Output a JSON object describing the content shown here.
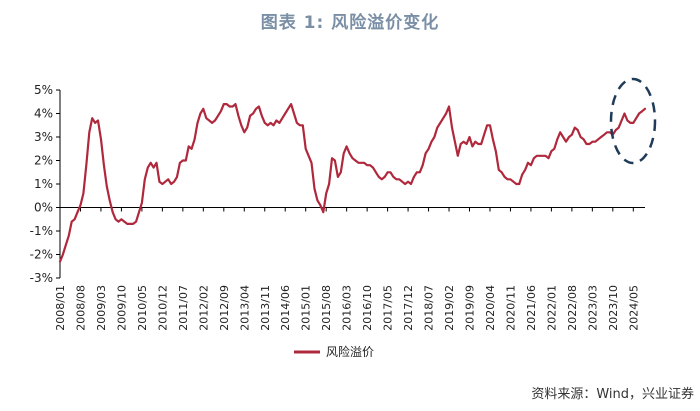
{
  "chart_data": {
    "type": "line",
    "title": "图表 1:  风险溢价变化",
    "legend": {
      "entries": [
        "风险溢价"
      ],
      "placement": "bottom-center"
    },
    "source": "资料来源：Wind，兴业证券",
    "series_color": "#b0283c",
    "highlight_color": "#1f3b57",
    "ylim": [
      -3,
      5
    ],
    "yticks": [
      {
        "value": 5,
        "label": "5%"
      },
      {
        "value": 4,
        "label": "4%"
      },
      {
        "value": 3,
        "label": "3%"
      },
      {
        "value": 2,
        "label": "2%"
      },
      {
        "value": 1,
        "label": "1%"
      },
      {
        "value": 0,
        "label": "0%"
      },
      {
        "value": -1,
        "label": "-1%"
      },
      {
        "value": -2,
        "label": "-2%"
      },
      {
        "value": -3,
        "label": "-3%"
      }
    ],
    "xticks": [
      "2008/01",
      "2008/08",
      "2009/03",
      "2009/10",
      "2010/05",
      "2010/12",
      "2011/07",
      "2012/02",
      "2012/09",
      "2013/04",
      "2013/11",
      "2014/06",
      "2015/01",
      "2015/08",
      "2016/03",
      "2016/10",
      "2017/05",
      "2017/12",
      "2018/07",
      "2019/02",
      "2019/09",
      "2020/04",
      "2020/11",
      "2021/06",
      "2022/01",
      "2022/08",
      "2023/03",
      "2023/10",
      "2024/05"
    ],
    "x_start": "2008/01",
    "x_end": "2024/09",
    "series": [
      {
        "name": "风险溢价",
        "points": [
          [
            "2008/01",
            -2.3
          ],
          [
            "2008/02",
            -2.0
          ],
          [
            "2008/03",
            -1.6
          ],
          [
            "2008/04",
            -1.2
          ],
          [
            "2008/05",
            -0.6
          ],
          [
            "2008/06",
            -0.5
          ],
          [
            "2008/07",
            -0.2
          ],
          [
            "2008/08",
            0.1
          ],
          [
            "2008/09",
            0.6
          ],
          [
            "2008/10",
            1.8
          ],
          [
            "2008/11",
            3.2
          ],
          [
            "2008/12",
            3.8
          ],
          [
            "2009/01",
            3.6
          ],
          [
            "2009/02",
            3.7
          ],
          [
            "2009/03",
            2.9
          ],
          [
            "2009/04",
            1.8
          ],
          [
            "2009/05",
            0.9
          ],
          [
            "2009/06",
            0.3
          ],
          [
            "2009/07",
            -0.2
          ],
          [
            "2009/08",
            -0.5
          ],
          [
            "2009/09",
            -0.6
          ],
          [
            "2009/10",
            -0.5
          ],
          [
            "2009/11",
            -0.6
          ],
          [
            "2009/12",
            -0.7
          ],
          [
            "2010/01",
            -0.7
          ],
          [
            "2010/02",
            -0.7
          ],
          [
            "2010/03",
            -0.6
          ],
          [
            "2010/04",
            -0.2
          ],
          [
            "2010/05",
            0.2
          ],
          [
            "2010/06",
            1.2
          ],
          [
            "2010/07",
            1.7
          ],
          [
            "2010/08",
            1.9
          ],
          [
            "2010/09",
            1.7
          ],
          [
            "2010/10",
            1.9
          ],
          [
            "2010/11",
            1.1
          ],
          [
            "2010/12",
            1.0
          ],
          [
            "2011/01",
            1.1
          ],
          [
            "2011/02",
            1.2
          ],
          [
            "2011/03",
            1.0
          ],
          [
            "2011/04",
            1.1
          ],
          [
            "2011/05",
            1.3
          ],
          [
            "2011/06",
            1.9
          ],
          [
            "2011/07",
            2.0
          ],
          [
            "2011/08",
            2.0
          ],
          [
            "2011/09",
            2.6
          ],
          [
            "2011/10",
            2.5
          ],
          [
            "2011/11",
            2.9
          ],
          [
            "2011/12",
            3.6
          ],
          [
            "2012/01",
            4.0
          ],
          [
            "2012/02",
            4.2
          ],
          [
            "2012/03",
            3.8
          ],
          [
            "2012/04",
            3.7
          ],
          [
            "2012/05",
            3.6
          ],
          [
            "2012/06",
            3.7
          ],
          [
            "2012/07",
            3.9
          ],
          [
            "2012/08",
            4.1
          ],
          [
            "2012/09",
            4.4
          ],
          [
            "2012/10",
            4.4
          ],
          [
            "2012/11",
            4.3
          ],
          [
            "2012/12",
            4.3
          ],
          [
            "2013/01",
            4.4
          ],
          [
            "2013/02",
            3.9
          ],
          [
            "2013/03",
            3.5
          ],
          [
            "2013/04",
            3.2
          ],
          [
            "2013/05",
            3.4
          ],
          [
            "2013/06",
            3.9
          ],
          [
            "2013/07",
            4.0
          ],
          [
            "2013/08",
            4.2
          ],
          [
            "2013/09",
            4.3
          ],
          [
            "2013/10",
            3.9
          ],
          [
            "2013/11",
            3.6
          ],
          [
            "2013/12",
            3.5
          ],
          [
            "2014/01",
            3.6
          ],
          [
            "2014/02",
            3.5
          ],
          [
            "2014/03",
            3.7
          ],
          [
            "2014/04",
            3.6
          ],
          [
            "2014/05",
            3.8
          ],
          [
            "2014/06",
            4.0
          ],
          [
            "2014/07",
            4.2
          ],
          [
            "2014/08",
            4.4
          ],
          [
            "2014/09",
            4.0
          ],
          [
            "2014/10",
            3.6
          ],
          [
            "2014/11",
            3.5
          ],
          [
            "2014/12",
            3.5
          ],
          [
            "2015/01",
            2.5
          ],
          [
            "2015/02",
            2.2
          ],
          [
            "2015/03",
            1.9
          ],
          [
            "2015/04",
            0.8
          ],
          [
            "2015/05",
            0.3
          ],
          [
            "2015/06",
            0.1
          ],
          [
            "2015/07",
            -0.2
          ],
          [
            "2015/08",
            0.6
          ],
          [
            "2015/09",
            1.0
          ],
          [
            "2015/10",
            2.1
          ],
          [
            "2015/11",
            2.0
          ],
          [
            "2015/12",
            1.3
          ],
          [
            "2016/01",
            1.5
          ],
          [
            "2016/02",
            2.3
          ],
          [
            "2016/03",
            2.6
          ],
          [
            "2016/04",
            2.3
          ],
          [
            "2016/05",
            2.1
          ],
          [
            "2016/06",
            2.0
          ],
          [
            "2016/07",
            1.9
          ],
          [
            "2016/08",
            1.9
          ],
          [
            "2016/09",
            1.9
          ],
          [
            "2016/10",
            1.8
          ],
          [
            "2016/11",
            1.8
          ],
          [
            "2016/12",
            1.7
          ],
          [
            "2017/01",
            1.5
          ],
          [
            "2017/02",
            1.3
          ],
          [
            "2017/03",
            1.2
          ],
          [
            "2017/04",
            1.3
          ],
          [
            "2017/05",
            1.5
          ],
          [
            "2017/06",
            1.5
          ],
          [
            "2017/07",
            1.3
          ],
          [
            "2017/08",
            1.2
          ],
          [
            "2017/09",
            1.2
          ],
          [
            "2017/10",
            1.1
          ],
          [
            "2017/11",
            1.0
          ],
          [
            "2017/12",
            1.1
          ],
          [
            "2018/01",
            1.0
          ],
          [
            "2018/02",
            1.3
          ],
          [
            "2018/03",
            1.5
          ],
          [
            "2018/04",
            1.5
          ],
          [
            "2018/05",
            1.8
          ],
          [
            "2018/06",
            2.3
          ],
          [
            "2018/07",
            2.5
          ],
          [
            "2018/08",
            2.8
          ],
          [
            "2018/09",
            3.0
          ],
          [
            "2018/10",
            3.4
          ],
          [
            "2018/11",
            3.6
          ],
          [
            "2018/12",
            3.8
          ],
          [
            "2019/01",
            4.0
          ],
          [
            "2019/02",
            4.3
          ],
          [
            "2019/03",
            3.4
          ],
          [
            "2019/04",
            2.8
          ],
          [
            "2019/05",
            2.2
          ],
          [
            "2019/06",
            2.7
          ],
          [
            "2019/07",
            2.8
          ],
          [
            "2019/08",
            2.7
          ],
          [
            "2019/09",
            3.0
          ],
          [
            "2019/10",
            2.6
          ],
          [
            "2019/11",
            2.8
          ],
          [
            "2019/12",
            2.7
          ],
          [
            "2020/01",
            2.7
          ],
          [
            "2020/02",
            3.1
          ],
          [
            "2020/03",
            3.5
          ],
          [
            "2020/04",
            3.5
          ],
          [
            "2020/05",
            2.9
          ],
          [
            "2020/06",
            2.4
          ],
          [
            "2020/07",
            1.6
          ],
          [
            "2020/08",
            1.5
          ],
          [
            "2020/09",
            1.3
          ],
          [
            "2020/10",
            1.2
          ],
          [
            "2020/11",
            1.2
          ],
          [
            "2020/12",
            1.1
          ],
          [
            "2021/01",
            1.0
          ],
          [
            "2021/02",
            1.0
          ],
          [
            "2021/03",
            1.4
          ],
          [
            "2021/04",
            1.6
          ],
          [
            "2021/05",
            1.9
          ],
          [
            "2021/06",
            1.8
          ],
          [
            "2021/07",
            2.1
          ],
          [
            "2021/08",
            2.2
          ],
          [
            "2021/09",
            2.2
          ],
          [
            "2021/10",
            2.2
          ],
          [
            "2021/11",
            2.2
          ],
          [
            "2021/12",
            2.1
          ],
          [
            "2022/01",
            2.4
          ],
          [
            "2022/02",
            2.5
          ],
          [
            "2022/03",
            2.9
          ],
          [
            "2022/04",
            3.2
          ],
          [
            "2022/05",
            3.0
          ],
          [
            "2022/06",
            2.8
          ],
          [
            "2022/07",
            3.0
          ],
          [
            "2022/08",
            3.1
          ],
          [
            "2022/09",
            3.4
          ],
          [
            "2022/10",
            3.3
          ],
          [
            "2022/11",
            3.0
          ],
          [
            "2022/12",
            2.9
          ],
          [
            "2023/01",
            2.7
          ],
          [
            "2023/02",
            2.7
          ],
          [
            "2023/03",
            2.8
          ],
          [
            "2023/04",
            2.8
          ],
          [
            "2023/05",
            2.9
          ],
          [
            "2023/06",
            3.0
          ],
          [
            "2023/07",
            3.1
          ],
          [
            "2023/08",
            3.2
          ],
          [
            "2023/09",
            3.2
          ],
          [
            "2023/10",
            3.1
          ],
          [
            "2023/11",
            3.3
          ],
          [
            "2023/12",
            3.4
          ],
          [
            "2024/01",
            3.7
          ],
          [
            "2024/02",
            4.0
          ],
          [
            "2024/03",
            3.7
          ],
          [
            "2024/04",
            3.6
          ],
          [
            "2024/05",
            3.6
          ],
          [
            "2024/06",
            3.8
          ],
          [
            "2024/07",
            4.0
          ],
          [
            "2024/08",
            4.1
          ],
          [
            "2024/09",
            4.2
          ]
        ]
      }
    ]
  }
}
